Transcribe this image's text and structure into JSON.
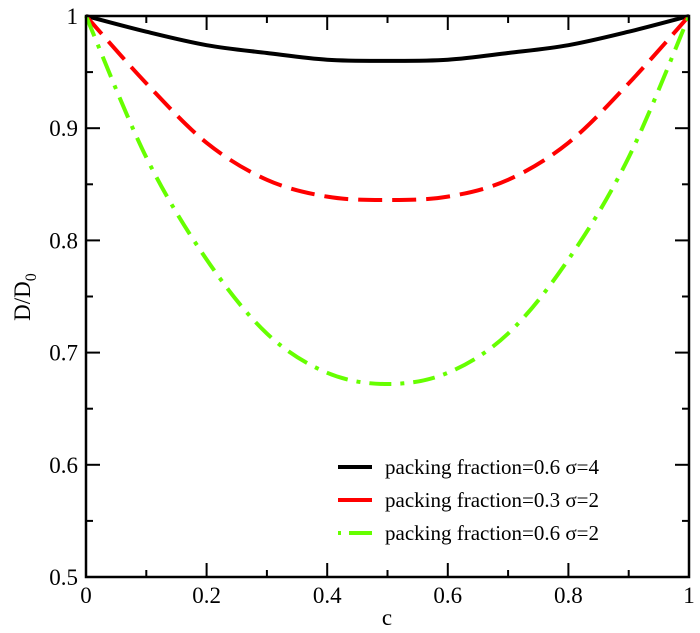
{
  "chart_data": {
    "type": "line",
    "xlabel": "c",
    "ylabel": "D/D",
    "ylabel_sub": "0",
    "xlim": [
      0,
      1
    ],
    "ylim": [
      0.5,
      1
    ],
    "xticks": [
      "0",
      "0.2",
      "0.4",
      "0.6",
      "0.8",
      "1"
    ],
    "yticks": [
      "0.5",
      "0.6",
      "0.7",
      "0.8",
      "0.9",
      "1"
    ],
    "grid": false,
    "legend_position": "bottom-right",
    "x": [
      0,
      0.1,
      0.2,
      0.3,
      0.4,
      0.5,
      0.6,
      0.7,
      0.8,
      0.9,
      1.0
    ],
    "series": [
      {
        "name": "packing fraction=0.6 σ=4",
        "color": "#000000",
        "style": "solid",
        "values": [
          1.0,
          0.986,
          0.974,
          0.967,
          0.961,
          0.96,
          0.961,
          0.967,
          0.974,
          0.986,
          1.0
        ]
      },
      {
        "name": "packing fraction=0.3 σ=2",
        "color": "#ff0000",
        "style": "dashed",
        "values": [
          1.0,
          0.94,
          0.887,
          0.854,
          0.839,
          0.836,
          0.839,
          0.854,
          0.887,
          0.94,
          1.0
        ]
      },
      {
        "name": "packing fraction=0.6 σ=2",
        "color": "#66ff00",
        "style": "dash-dot",
        "values": [
          1.0,
          0.874,
          0.783,
          0.717,
          0.682,
          0.672,
          0.682,
          0.717,
          0.783,
          0.874,
          1.0
        ]
      }
    ]
  }
}
